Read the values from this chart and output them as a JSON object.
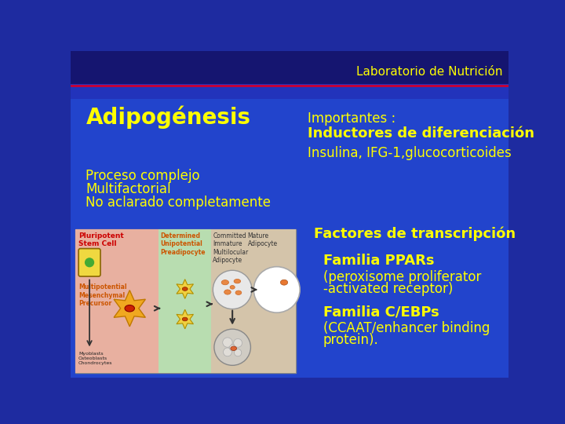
{
  "bg_color_top": "#1a1a8c",
  "bg_color_bottom": "#2222aa",
  "bg_color": "#1e2ba0",
  "header_text": "Laboratorio de Nutrición",
  "header_color": "#ffff00",
  "header_line_color": "#cc0033",
  "title_text": "Adipogénesis",
  "title_color": "#ffff00",
  "importantes_text": "Importantes :",
  "importantes_color": "#ffff00",
  "inductores_title": "Inductores de diferenciación",
  "inductores_title_color": "#ffff00",
  "inductores_detail": "Insulina, IFG-1,glucocorticoides",
  "inductores_detail_color": "#ffff00",
  "proceso_lines": [
    "Proceso complejo",
    "Multifactorial",
    "No aclarado completamente"
  ],
  "proceso_color": "#ffff00",
  "factores_title": "Factores de transcripción",
  "factores_title_color": "#ffff00",
  "familia_ppars_title": "Familia PPARs",
  "familia_ppars_color": "#ffff00",
  "ppars_detail_lines": [
    "(peroxisome proliferator",
    "-activated receptor)"
  ],
  "ppars_detail_color": "#ffff00",
  "familia_cebps_title": "Familia C/EBPs",
  "familia_cebps_color": "#ffff00",
  "cebps_detail_lines": [
    "(CCAAT/enhancer binding",
    "protein)."
  ],
  "cebps_detail_color": "#ffff00"
}
